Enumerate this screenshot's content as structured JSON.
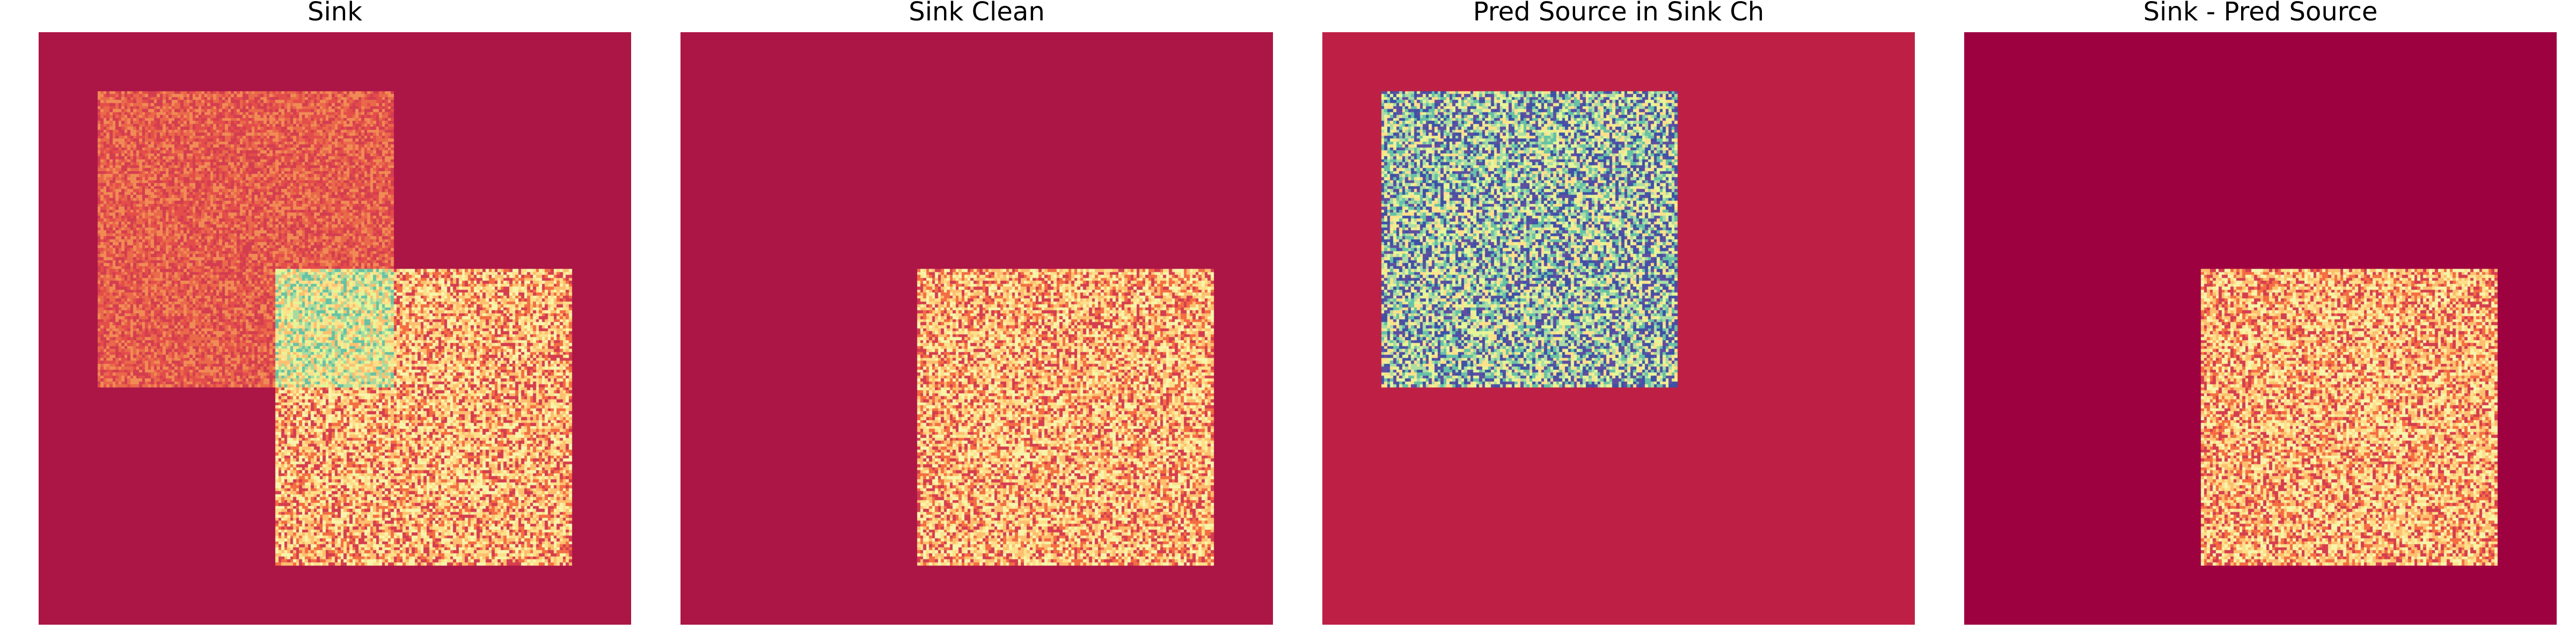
{
  "chart_data": [
    {
      "type": "heatmap",
      "title": "Sink",
      "colormap": "Spectral",
      "background": "#ab1646",
      "noise": "pixel-level random intensities inside squares",
      "regions": [
        {
          "name": "source square",
          "x_range": [
            0.1,
            0.6
          ],
          "y_range": [
            0.1,
            0.6
          ],
          "palette": [
            "#e34d4a",
            "#e9694a",
            "#f18b55",
            "#d43d4f"
          ]
        },
        {
          "name": "sink square",
          "x_range": [
            0.4,
            0.9
          ],
          "y_range": [
            0.4,
            0.9
          ],
          "palette": [
            "#fee08b",
            "#f7f5ab",
            "#fdbf6f",
            "#f46d43",
            "#d53e4f"
          ]
        },
        {
          "name": "overlap",
          "x_range": [
            0.4,
            0.6
          ],
          "y_range": [
            0.4,
            0.6
          ],
          "palette": [
            "#a6dba0",
            "#e6f598",
            "#fee08b",
            "#66c2a5",
            "#fdbf6f"
          ]
        }
      ]
    },
    {
      "type": "heatmap",
      "title": "Sink Clean",
      "colormap": "Spectral",
      "background": "#ab1646",
      "regions": [
        {
          "name": "sink square",
          "x_range": [
            0.4,
            0.9
          ],
          "y_range": [
            0.4,
            0.9
          ],
          "palette": [
            "#fee08b",
            "#f7f5ab",
            "#fdbf6f",
            "#f46d43",
            "#d53e4f"
          ]
        }
      ]
    },
    {
      "type": "heatmap",
      "title": "Pred Source in Sink Ch",
      "colormap": "Spectral",
      "background": "#be2045",
      "regions": [
        {
          "name": "predicted source",
          "x_range": [
            0.1,
            0.6
          ],
          "y_range": [
            0.1,
            0.6
          ],
          "palette": [
            "#3f51a6",
            "#5e4fa2",
            "#e6f598",
            "#fee08b",
            "#66c2a5",
            "#abdda4"
          ]
        }
      ]
    },
    {
      "type": "heatmap",
      "title": "Sink - Pred Source",
      "colormap": "Spectral",
      "background": "#9d0140",
      "regions": [
        {
          "name": "residual overlap",
          "x_range": [
            0.4,
            0.6
          ],
          "y_range": [
            0.4,
            0.6
          ],
          "palette": [
            "#9d0140",
            "#b8124a",
            "#f46d43",
            "#fee08b"
          ]
        },
        {
          "name": "sink square",
          "x_range": [
            0.4,
            0.9
          ],
          "y_range": [
            0.4,
            0.9
          ],
          "palette": [
            "#fee08b",
            "#f7f5ab",
            "#fdbf6f",
            "#f46d43",
            "#d53e4f"
          ]
        }
      ]
    }
  ]
}
